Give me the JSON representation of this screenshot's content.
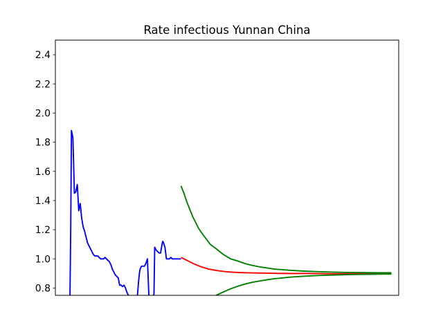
{
  "chart_data": {
    "type": "line",
    "title": "Rate infectious Yunnan China",
    "xlabel": "",
    "ylabel": "",
    "xlim": [
      -10,
      225
    ],
    "ylim": [
      0.75,
      2.5
    ],
    "x_ticks_visible": false,
    "y_ticks": [
      0.8,
      1.0,
      1.2,
      1.4,
      1.6,
      1.8,
      2.0,
      2.2,
      2.4
    ],
    "y_tick_labels": [
      "0.8",
      "1.0",
      "1.2",
      "1.4",
      "1.6",
      "1.8",
      "2.0",
      "2.2",
      "2.4"
    ],
    "grid": false,
    "legend": "none",
    "series": [
      {
        "color": "#0000ff",
        "x": [
          0.0,
          0.5,
          1.0,
          2.0,
          2.5,
          3.0,
          4.0,
          5.0,
          6.0,
          7.0,
          8.0,
          9.0,
          10.0,
          11.0,
          12.0,
          13.0,
          14.0,
          15.0,
          16.0,
          17.0,
          18.0,
          19.0,
          20.0,
          21.0,
          22.0,
          23.0,
          24.0,
          25.0,
          26.0,
          27.0,
          28.0,
          29.0,
          30.0,
          31.0,
          32.0,
          33.0,
          34.0,
          35.0,
          36.0,
          37.0,
          38.0,
          39.0,
          40.0,
          41.0,
          42.0,
          43.0,
          44.0,
          45.0,
          46.0,
          47.0,
          47.5,
          48.0,
          49.0,
          50.0,
          51.0,
          52.0,
          53.0,
          54.0,
          55.0,
          56.0,
          57.0,
          57.5,
          58.0,
          59.0,
          60.0,
          61.0,
          62.0,
          63.0,
          63.5,
          64.0,
          65.0,
          66.0,
          67.0,
          68.0,
          69.0,
          70.0,
          71.0,
          72.0,
          73.0,
          74.0,
          75.0,
          76.0
        ],
        "y": [
          0.75,
          1.2,
          1.88,
          1.83,
          1.65,
          1.45,
          1.46,
          1.51,
          1.33,
          1.38,
          1.28,
          1.22,
          1.19,
          1.15,
          1.11,
          1.09,
          1.07,
          1.05,
          1.03,
          1.02,
          1.02,
          1.02,
          1.01,
          1.0,
          1.0,
          1.0,
          1.01,
          1.0,
          0.99,
          0.98,
          0.96,
          0.93,
          0.91,
          0.89,
          0.88,
          0.87,
          0.82,
          0.82,
          0.81,
          0.82,
          0.8,
          0.77,
          0.75,
          0.73,
          0.7,
          0.69,
          0.68,
          0.69,
          0.73,
          0.85,
          0.9,
          0.93,
          0.95,
          0.95,
          0.95,
          0.97,
          1.0,
          0.75,
          0.7,
          0.72,
          0.74,
          0.76,
          1.08,
          1.06,
          1.05,
          1.04,
          1.04,
          1.1,
          1.12,
          1.11,
          1.08,
          1.0,
          1.0,
          1.0,
          1.01,
          1.0,
          1.0,
          1.0,
          1.0,
          1.0,
          1.0,
          1.0
        ]
      },
      {
        "color": "#ff0000",
        "x": [
          76,
          80,
          85,
          90,
          95,
          100,
          105,
          110,
          115,
          120,
          125,
          130,
          135,
          140,
          150,
          160,
          170,
          180,
          190,
          200,
          210,
          220
        ],
        "y": [
          1.01,
          0.99,
          0.965,
          0.945,
          0.93,
          0.921,
          0.914,
          0.91,
          0.907,
          0.905,
          0.904,
          0.903,
          0.902,
          0.901,
          0.9,
          0.9,
          0.899,
          0.898,
          0.898,
          0.898,
          0.898,
          0.898
        ]
      },
      {
        "color": "#008000",
        "x": [
          76,
          78,
          80,
          82,
          84,
          86,
          88,
          90,
          93,
          96,
          100,
          105,
          110,
          115,
          120,
          125,
          130,
          140,
          150,
          160,
          170,
          180,
          190,
          200,
          210,
          220
        ],
        "y": [
          1.5,
          1.45,
          1.39,
          1.34,
          1.29,
          1.25,
          1.21,
          1.18,
          1.14,
          1.1,
          1.07,
          1.03,
          1.0,
          0.985,
          0.967,
          0.955,
          0.945,
          0.93,
          0.922,
          0.916,
          0.912,
          0.909,
          0.907,
          0.906,
          0.905,
          0.905
        ]
      },
      {
        "color": "#008000",
        "x": [
          100,
          105,
          110,
          115,
          120,
          125,
          130,
          135,
          140,
          145,
          150,
          155,
          160,
          170,
          180,
          190,
          200,
          210,
          220
        ],
        "y": [
          0.75,
          0.773,
          0.795,
          0.813,
          0.828,
          0.84,
          0.849,
          0.857,
          0.864,
          0.869,
          0.874,
          0.878,
          0.881,
          0.886,
          0.889,
          0.892,
          0.894,
          0.895,
          0.896
        ]
      }
    ]
  }
}
